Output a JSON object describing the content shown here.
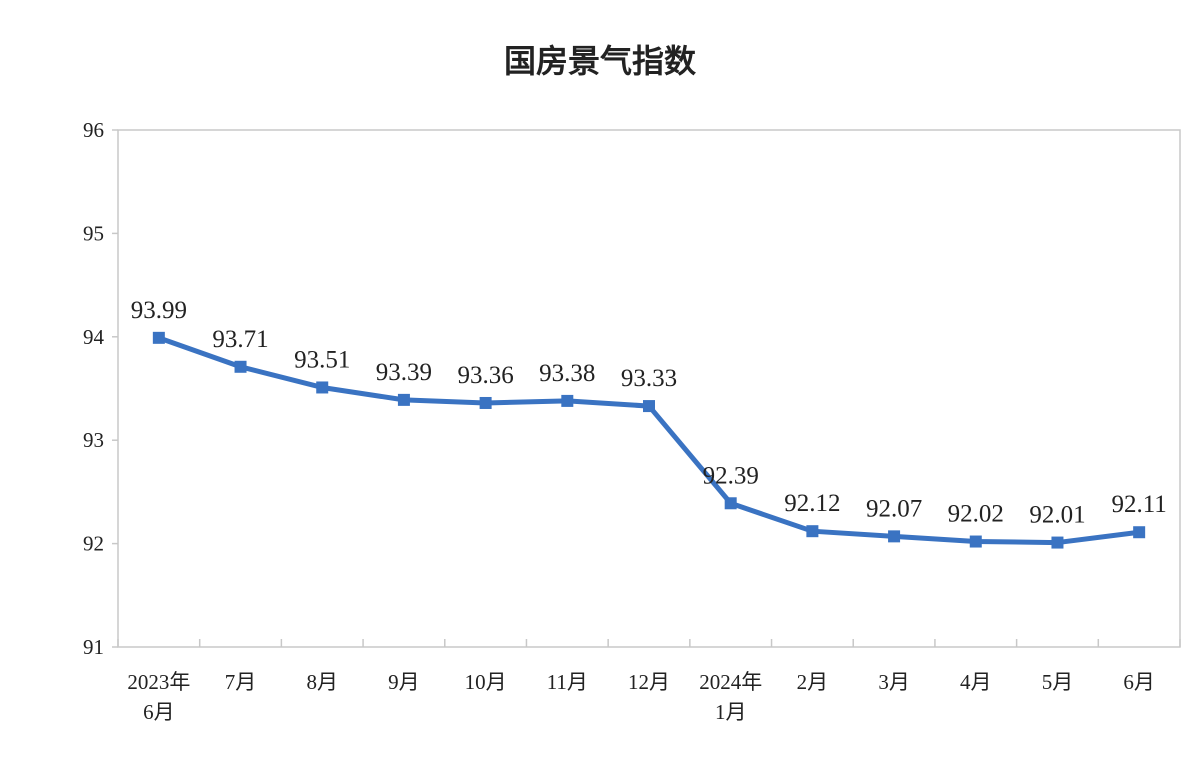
{
  "chart_data": {
    "type": "line",
    "title": "国房景气指数",
    "categories": [
      [
        "2023年",
        "6月"
      ],
      [
        "7月"
      ],
      [
        "8月"
      ],
      [
        "9月"
      ],
      [
        "10月"
      ],
      [
        "11月"
      ],
      [
        "12月"
      ],
      [
        "2024年",
        "1月"
      ],
      [
        "2月"
      ],
      [
        "3月"
      ],
      [
        "4月"
      ],
      [
        "5月"
      ],
      [
        "6月"
      ]
    ],
    "series": [
      {
        "name": "",
        "values": [
          93.99,
          93.71,
          93.51,
          93.39,
          93.36,
          93.38,
          93.33,
          92.39,
          92.12,
          92.07,
          92.02,
          92.01,
          92.11
        ],
        "labels": [
          "93.99",
          "93.71",
          "93.51",
          "93.39",
          "93.36",
          "93.38",
          "93.33",
          "92.39",
          "92.12",
          "92.07",
          "92.02",
          "92.01",
          "92.11"
        ],
        "color": "#3a73c2"
      }
    ],
    "ylim": [
      91,
      96
    ],
    "yticks": [
      "91",
      "92",
      "93",
      "94",
      "95",
      "96"
    ],
    "grid": false,
    "legend": "none",
    "axis_color": "#c8c8c8"
  }
}
